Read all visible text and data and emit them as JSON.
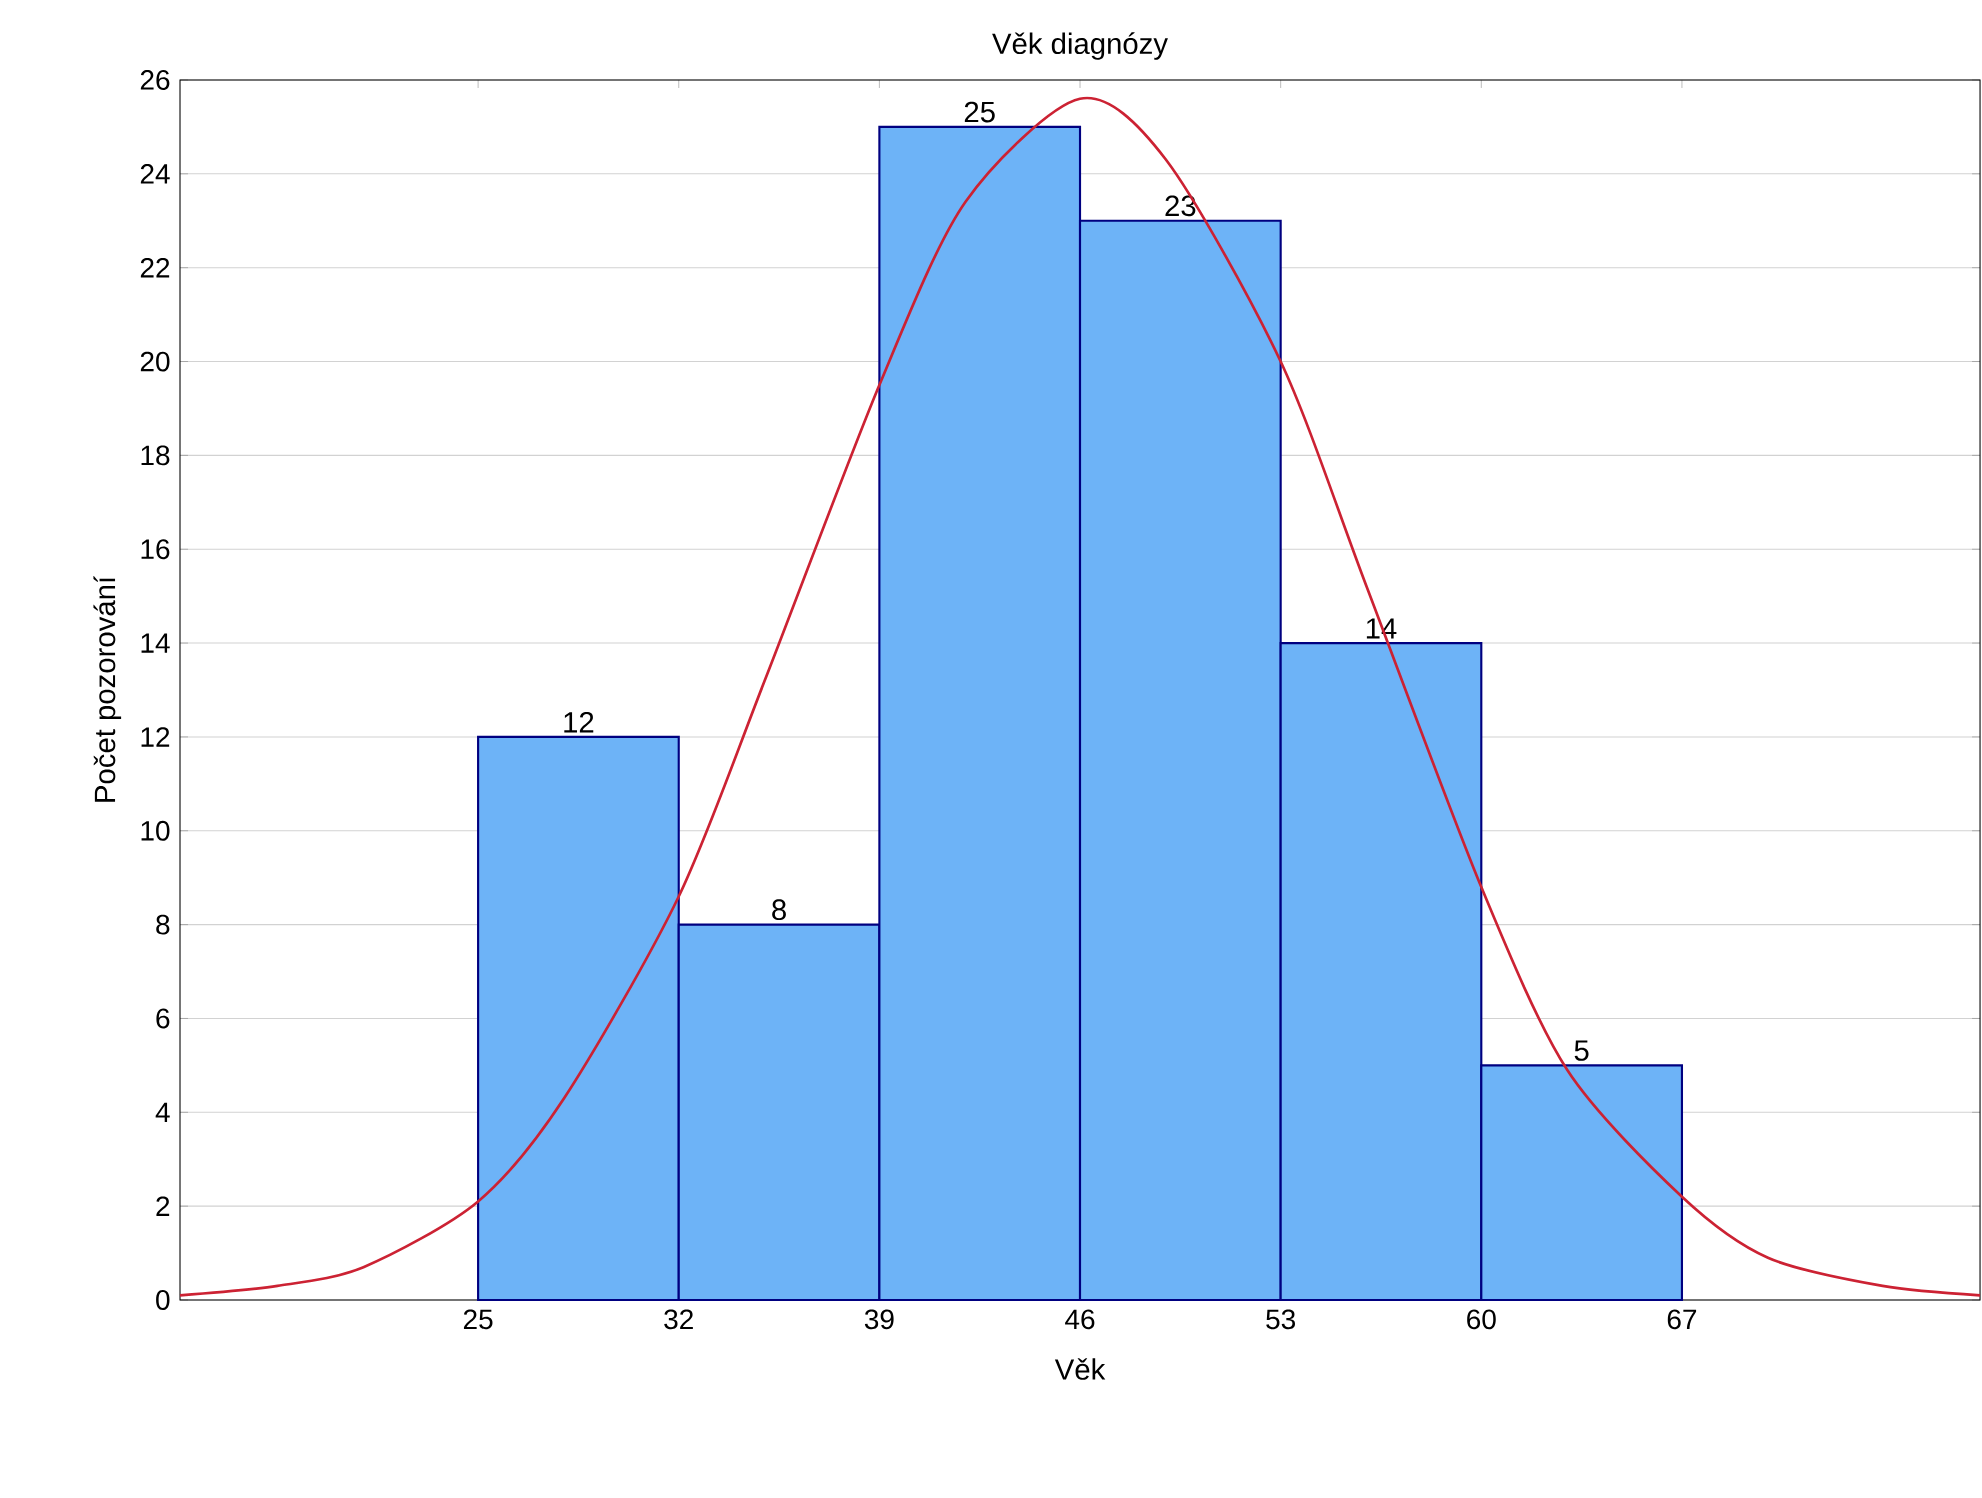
{
  "chart_data": {
    "type": "histogram",
    "title": "Věk diagnózy",
    "xlabel": "Věk",
    "ylabel": "Počet pozorování",
    "bins": [
      25,
      32,
      39,
      46,
      53,
      60,
      67
    ],
    "values": [
      12,
      8,
      25,
      23,
      14,
      5
    ],
    "color": "#6db3f7",
    "value_labels": [
      "12",
      "8",
      "25",
      "23",
      "14",
      "5"
    ],
    "series": [
      {
        "type": "line",
        "color": "#cc2233",
        "x": [
          14.6,
          18,
          21,
          25,
          28,
          32,
          35,
          39,
          42,
          46,
          49,
          53,
          56,
          60,
          63,
          67,
          70,
          74,
          77.4
        ],
        "values": [
          0.1,
          0.3,
          0.7,
          2.1,
          4.3,
          8.6,
          13.2,
          19.5,
          23.4,
          25.6,
          24.3,
          20.0,
          15.2,
          8.8,
          4.9,
          2.2,
          0.9,
          0.3,
          0.1
        ]
      }
    ],
    "xlim": [
      14.6,
      77.4
    ],
    "ylim": [
      0,
      26
    ],
    "xticks": [
      25,
      32,
      39,
      46,
      53,
      60,
      67
    ],
    "yticks": [
      0,
      2,
      4,
      6,
      8,
      10,
      12,
      14,
      16,
      18,
      20,
      22,
      24,
      26
    ],
    "grid": "y"
  }
}
